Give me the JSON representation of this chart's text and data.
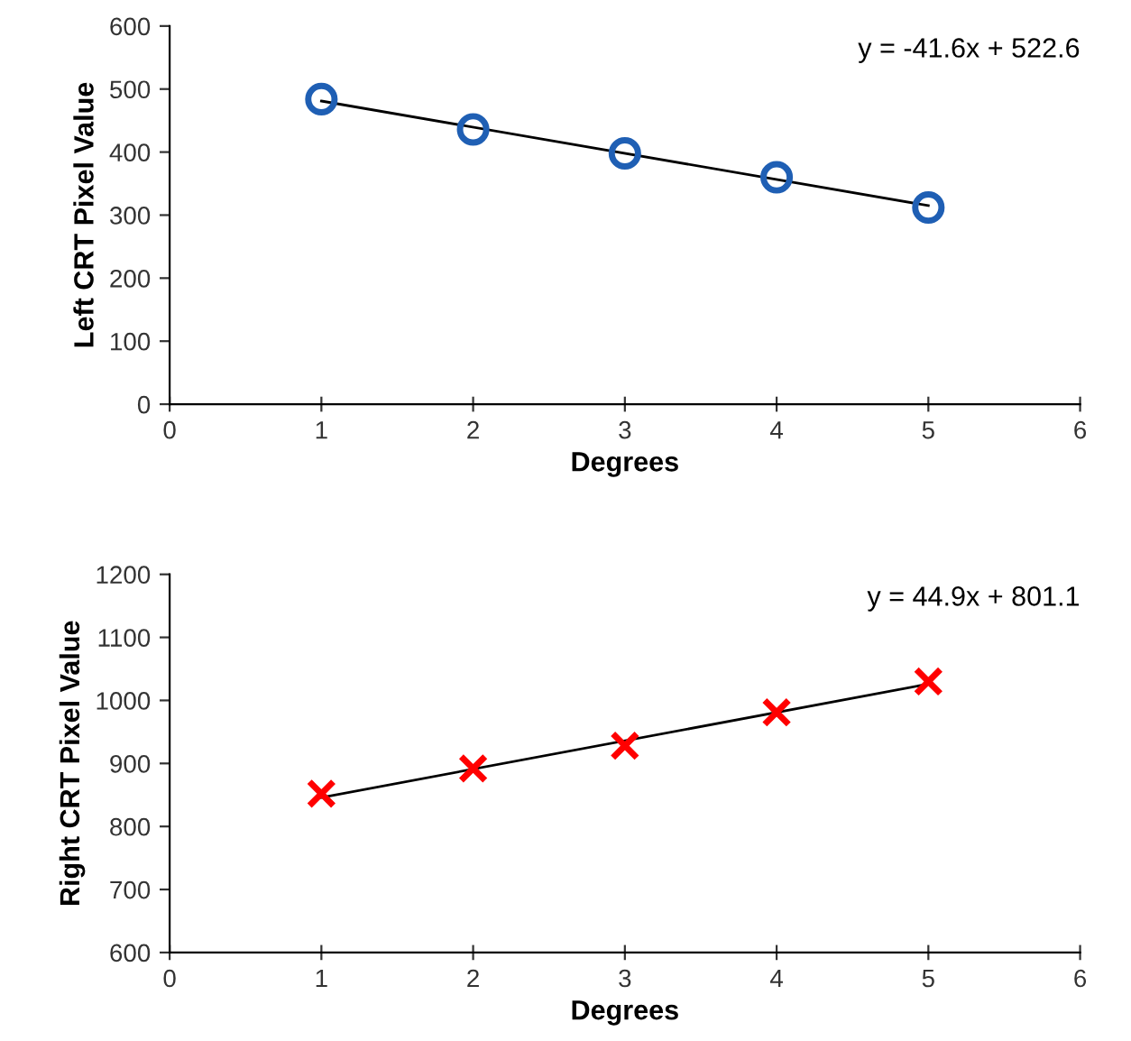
{
  "chart_data": [
    {
      "type": "scatter",
      "xlabel": "Degrees",
      "ylabel": "Left CRT Pixel Value",
      "annotations": [
        "y = -41.6x + 522.6"
      ],
      "xlim": [
        0,
        6
      ],
      "xticks": [
        0,
        1,
        2,
        3,
        4,
        5,
        6
      ],
      "ylim": [
        0,
        600
      ],
      "yticks": [
        0,
        100,
        200,
        300,
        400,
        500,
        600
      ],
      "grid": false,
      "legend": false,
      "series": [
        {
          "color": "#1f5fb4",
          "marker": "circle",
          "x": [
            1,
            2,
            3,
            4,
            5
          ],
          "values": [
            484,
            436,
            398,
            360,
            312
          ]
        },
        {
          "type": "line",
          "color": "#000000",
          "marker": "none",
          "line_style": "solid",
          "x": [
            1,
            5
          ],
          "values": [
            481,
            315
          ]
        }
      ]
    },
    {
      "type": "scatter",
      "xlabel": "Degrees",
      "ylabel": "Right CRT Pixel Value",
      "annotations": [
        "y = 44.9x + 801.1"
      ],
      "xlim": [
        0,
        6
      ],
      "xticks": [
        0,
        1,
        2,
        3,
        4,
        5,
        6
      ],
      "ylim": [
        600,
        1200
      ],
      "yticks": [
        600,
        700,
        800,
        900,
        1000,
        1100,
        1200
      ],
      "grid": false,
      "legend": false,
      "series": [
        {
          "color": "#ff0000",
          "marker": "cross",
          "x": [
            1,
            2,
            3,
            4,
            5
          ],
          "values": [
            852,
            892,
            928,
            981,
            1030
          ]
        },
        {
          "type": "line",
          "color": "#000000",
          "marker": "none",
          "line_style": "solid",
          "x": [
            1,
            5
          ],
          "values": [
            846,
            1026
          ]
        }
      ]
    }
  ]
}
